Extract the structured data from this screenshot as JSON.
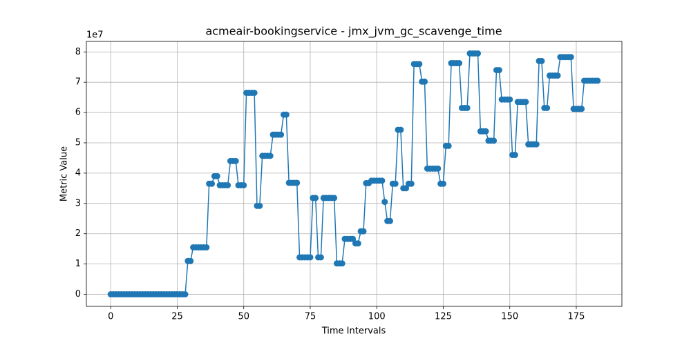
{
  "chart_data": {
    "type": "line",
    "title": "acmeair-bookingservice - jmx_jvm_gc_scavenge_time",
    "x_label": "Time Intervals",
    "y_label": "Metric Value",
    "y_scale_label": "1e7",
    "x": [
      0,
      1,
      2,
      3,
      4,
      5,
      6,
      7,
      8,
      9,
      10,
      11,
      12,
      13,
      14,
      15,
      16,
      17,
      18,
      19,
      20,
      21,
      22,
      23,
      24,
      25,
      26,
      27,
      28,
      29,
      30,
      31,
      32,
      33,
      34,
      35,
      36,
      37,
      38,
      39,
      40,
      41,
      42,
      43,
      44,
      45,
      46,
      47,
      48,
      49,
      50,
      51,
      52,
      53,
      54,
      55,
      56,
      57,
      58,
      59,
      60,
      61,
      62,
      63,
      64,
      65,
      66,
      67,
      68,
      69,
      70,
      71,
      72,
      73,
      74,
      75,
      76,
      77,
      78,
      79,
      80,
      81,
      82,
      83,
      84,
      85,
      86,
      87,
      88,
      89,
      90,
      91,
      92,
      93,
      94,
      95,
      96,
      97,
      98,
      99,
      100,
      101,
      102,
      103,
      104,
      105,
      106,
      107,
      108,
      109,
      110,
      111,
      112,
      113,
      114,
      115,
      116,
      117,
      118,
      119,
      120,
      121,
      122,
      123,
      124,
      125,
      126,
      127,
      128,
      129,
      130,
      131,
      132,
      133,
      134,
      135,
      136,
      137,
      138,
      139,
      140,
      141,
      142,
      143,
      144,
      145,
      146,
      147,
      148,
      149,
      150,
      151,
      152,
      153,
      154,
      155,
      156,
      157,
      158,
      159,
      160,
      161,
      162,
      163,
      164,
      165,
      166,
      167,
      168,
      169,
      170,
      171,
      172,
      173,
      174,
      175,
      176,
      177,
      178,
      179,
      180,
      181,
      182,
      183
    ],
    "series": [
      {
        "color": "#1f77b4",
        "values": [
          0,
          0,
          0,
          0,
          0,
          0,
          0,
          0,
          0,
          0,
          0,
          0,
          0,
          0,
          0,
          0,
          0,
          0,
          0,
          0,
          0,
          0,
          0,
          0,
          0,
          0,
          0,
          0,
          0,
          1.1,
          1.1,
          1.55,
          1.55,
          1.55,
          1.55,
          1.55,
          1.55,
          3.65,
          3.65,
          3.9,
          3.9,
          3.6,
          3.6,
          3.6,
          3.6,
          4.4,
          4.4,
          4.4,
          3.6,
          3.6,
          3.6,
          6.65,
          6.65,
          6.65,
          6.65,
          2.92,
          2.92,
          4.57,
          4.57,
          4.57,
          4.57,
          5.27,
          5.27,
          5.27,
          5.27,
          5.93,
          5.93,
          3.68,
          3.68,
          3.68,
          3.68,
          1.22,
          1.22,
          1.22,
          1.22,
          1.22,
          3.18,
          3.18,
          1.22,
          1.22,
          3.18,
          3.18,
          3.18,
          3.18,
          3.18,
          1.02,
          1.02,
          1.02,
          1.83,
          1.83,
          1.83,
          1.83,
          1.68,
          1.68,
          2.08,
          2.08,
          3.67,
          3.67,
          3.75,
          3.75,
          3.75,
          3.75,
          3.75,
          3.05,
          2.42,
          2.42,
          3.65,
          3.65,
          5.43,
          5.43,
          3.5,
          3.5,
          3.65,
          3.65,
          7.6,
          7.6,
          7.6,
          7.02,
          7.02,
          4.15,
          4.15,
          4.15,
          4.15,
          4.15,
          3.65,
          3.65,
          4.9,
          4.9,
          7.63,
          7.63,
          7.63,
          7.63,
          6.15,
          6.15,
          6.15,
          7.95,
          7.95,
          7.95,
          7.95,
          5.38,
          5.38,
          5.38,
          5.07,
          5.07,
          5.07,
          7.4,
          7.4,
          6.43,
          6.43,
          6.43,
          6.43,
          4.6,
          4.6,
          6.35,
          6.35,
          6.35,
          6.35,
          4.95,
          4.95,
          4.95,
          4.95,
          7.7,
          7.7,
          6.15,
          6.15,
          7.22,
          7.22,
          7.22,
          7.22,
          7.83,
          7.83,
          7.83,
          7.83,
          7.83,
          6.12,
          6.12,
          6.12,
          6.12,
          7.05,
          7.05,
          7.05,
          7.05,
          7.05,
          7.05
        ]
      }
    ],
    "xlim": [
      -9.15,
      192.15
    ],
    "xticks": [
      0,
      25,
      50,
      75,
      100,
      125,
      150,
      175
    ],
    "ylim": [
      -0.3975,
      8.3475
    ],
    "yticks": [
      0,
      1,
      2,
      3,
      4,
      5,
      6,
      7,
      8
    ],
    "grid": true
  }
}
